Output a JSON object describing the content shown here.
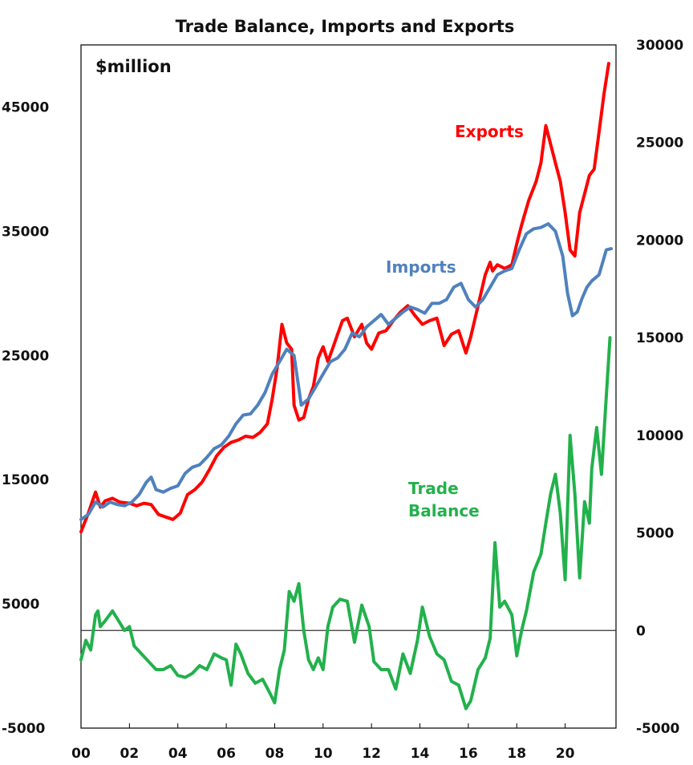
{
  "chart_data": {
    "type": "line",
    "title": "Trade Balance, Imports and Exports",
    "unit_label": "$million",
    "x_label": "",
    "y_label_left": "",
    "y_label_right": "",
    "ylim_left": [
      -5000,
      50000
    ],
    "ylim_right": [
      -5000,
      30000
    ],
    "yticks_left": [
      -5000,
      5000,
      15000,
      25000,
      35000,
      45000
    ],
    "yticks_right": [
      -5000,
      0,
      5000,
      10000,
      15000,
      20000,
      25000,
      30000
    ],
    "xlim": [
      2000,
      2022.1
    ],
    "xticks": [
      2000,
      2002,
      2004,
      2006,
      2008,
      2010,
      2012,
      2014,
      2016,
      2018,
      2020
    ],
    "xtick_labels": [
      "00",
      "02",
      "04",
      "06",
      "08",
      "10",
      "12",
      "14",
      "16",
      "18",
      "20"
    ],
    "zero_line_right": 0,
    "grid": false,
    "legend": "inline labels",
    "series": [
      {
        "name": "Exports",
        "axis": "left",
        "color": "#ff0000",
        "x": [
          2000.0,
          2000.3,
          2000.6,
          2000.8,
          2001.0,
          2001.3,
          2001.6,
          2002.0,
          2002.3,
          2002.6,
          2002.9,
          2003.2,
          2003.5,
          2003.8,
          2004.1,
          2004.4,
          2004.7,
          2005.0,
          2005.3,
          2005.6,
          2005.9,
          2006.2,
          2006.5,
          2006.8,
          2007.1,
          2007.4,
          2007.7,
          2007.9,
          2008.1,
          2008.3,
          2008.5,
          2008.7,
          2008.8,
          2009.0,
          2009.2,
          2009.4,
          2009.6,
          2009.8,
          2010.0,
          2010.2,
          2010.4,
          2010.6,
          2010.8,
          2011.0,
          2011.3,
          2011.6,
          2011.8,
          2012.0,
          2012.3,
          2012.6,
          2012.9,
          2013.2,
          2013.5,
          2013.8,
          2014.1,
          2014.4,
          2014.7,
          2015.0,
          2015.3,
          2015.6,
          2015.9,
          2016.1,
          2016.4,
          2016.7,
          2016.9,
          2017.0,
          2017.2,
          2017.5,
          2017.8,
          2018.0,
          2018.2,
          2018.5,
          2018.8,
          2019.0,
          2019.2,
          2019.4,
          2019.6,
          2019.8,
          2020.0,
          2020.2,
          2020.4,
          2020.6,
          2020.8,
          2021.0,
          2021.2,
          2021.4,
          2021.6,
          2021.8
        ],
        "values": [
          10800,
          12300,
          14000,
          12800,
          13300,
          13500,
          13200,
          13100,
          12900,
          13100,
          13000,
          12200,
          12000,
          11800,
          12300,
          13800,
          14200,
          14800,
          15800,
          16900,
          17600,
          18000,
          18200,
          18500,
          18400,
          18800,
          19500,
          21500,
          24000,
          27500,
          26000,
          25500,
          21000,
          19800,
          20000,
          21500,
          22500,
          24800,
          25700,
          24500,
          25600,
          26700,
          27800,
          28000,
          26500,
          27500,
          26000,
          25500,
          26800,
          27000,
          27800,
          28500,
          29000,
          28200,
          27500,
          27800,
          28000,
          25800,
          26700,
          27000,
          25200,
          26500,
          29000,
          31500,
          32500,
          31800,
          32300,
          32000,
          32300,
          34000,
          35500,
          37500,
          39000,
          40500,
          43500,
          42000,
          40500,
          39000,
          36500,
          33500,
          33000,
          36500,
          38000,
          39500,
          40000,
          43000,
          46000,
          48500
        ]
      },
      {
        "name": "Imports",
        "axis": "left",
        "color": "#4f81bd",
        "x": [
          2000.0,
          2000.3,
          2000.6,
          2000.9,
          2001.2,
          2001.5,
          2001.8,
          2002.1,
          2002.4,
          2002.7,
          2002.9,
          2003.1,
          2003.4,
          2003.7,
          2004.0,
          2004.3,
          2004.6,
          2004.9,
          2005.2,
          2005.5,
          2005.8,
          2006.1,
          2006.4,
          2006.7,
          2007.0,
          2007.3,
          2007.6,
          2007.9,
          2008.2,
          2008.5,
          2008.8,
          2009.1,
          2009.4,
          2009.7,
          2010.0,
          2010.3,
          2010.6,
          2010.9,
          2011.2,
          2011.5,
          2011.8,
          2012.1,
          2012.4,
          2012.7,
          2013.0,
          2013.3,
          2013.6,
          2013.9,
          2014.2,
          2014.5,
          2014.8,
          2015.1,
          2015.4,
          2015.7,
          2016.0,
          2016.3,
          2016.6,
          2016.9,
          2017.2,
          2017.5,
          2017.8,
          2018.1,
          2018.4,
          2018.7,
          2019.0,
          2019.3,
          2019.6,
          2019.9,
          2020.1,
          2020.3,
          2020.5,
          2020.7,
          2020.9,
          2021.1,
          2021.4,
          2021.7,
          2021.9
        ],
        "values": [
          11800,
          12200,
          13200,
          12800,
          13200,
          13000,
          12900,
          13200,
          13800,
          14800,
          15200,
          14200,
          14000,
          14300,
          14500,
          15500,
          16000,
          16200,
          16800,
          17500,
          17800,
          18500,
          19500,
          20200,
          20300,
          21000,
          22000,
          23500,
          24500,
          25500,
          25000,
          21000,
          21500,
          22500,
          23500,
          24500,
          24800,
          25500,
          26800,
          26500,
          27300,
          27800,
          28300,
          27500,
          28000,
          28500,
          28900,
          28700,
          28400,
          29200,
          29200,
          29500,
          30500,
          30800,
          29500,
          28900,
          29500,
          30500,
          31500,
          31800,
          32000,
          33500,
          34800,
          35200,
          35300,
          35600,
          35000,
          33000,
          30000,
          28200,
          28500,
          29600,
          30500,
          31000,
          31500,
          33500,
          33600
        ]
      },
      {
        "name": "Trade Balance",
        "axis": "right",
        "color": "#22b14c",
        "x": [
          2000.0,
          2000.2,
          2000.4,
          2000.6,
          2000.7,
          2000.8,
          2001.0,
          2001.3,
          2001.5,
          2001.8,
          2002.0,
          2002.2,
          2002.5,
          2002.8,
          2003.1,
          2003.4,
          2003.7,
          2004.0,
          2004.3,
          2004.6,
          2004.9,
          2005.2,
          2005.5,
          2005.8,
          2006.0,
          2006.2,
          2006.4,
          2006.6,
          2006.9,
          2007.2,
          2007.5,
          2007.8,
          2008.0,
          2008.2,
          2008.4,
          2008.6,
          2008.8,
          2009.0,
          2009.2,
          2009.4,
          2009.6,
          2009.8,
          2010.0,
          2010.2,
          2010.4,
          2010.7,
          2011.0,
          2011.3,
          2011.6,
          2011.9,
          2012.1,
          2012.4,
          2012.7,
          2013.0,
          2013.3,
          2013.6,
          2013.9,
          2014.1,
          2014.4,
          2014.7,
          2015.0,
          2015.3,
          2015.6,
          2015.9,
          2016.1,
          2016.4,
          2016.7,
          2016.9,
          2017.1,
          2017.3,
          2017.5,
          2017.8,
          2018.0,
          2018.2,
          2018.4,
          2018.7,
          2019.0,
          2019.2,
          2019.4,
          2019.6,
          2019.8,
          2020.0,
          2020.2,
          2020.4,
          2020.6,
          2020.8,
          2021.0,
          2021.1,
          2021.3,
          2021.5,
          2021.7,
          2021.85
        ],
        "values": [
          -1500,
          -500,
          -1000,
          800,
          1000,
          200,
          500,
          1000,
          600,
          0,
          200,
          -800,
          -1200,
          -1600,
          -2000,
          -2000,
          -1800,
          -2300,
          -2400,
          -2200,
          -1800,
          -2000,
          -1200,
          -1400,
          -1500,
          -2800,
          -700,
          -1200,
          -2200,
          -2700,
          -2500,
          -3200,
          -3700,
          -2000,
          -1000,
          2000,
          1500,
          2400,
          0,
          -1500,
          -2000,
          -1400,
          -2000,
          200,
          1200,
          1600,
          1500,
          -600,
          1300,
          200,
          -1600,
          -2000,
          -2000,
          -3000,
          -1200,
          -2200,
          -500,
          1200,
          -300,
          -1200,
          -1500,
          -2600,
          -2800,
          -4000,
          -3600,
          -2000,
          -1400,
          -400,
          4500,
          1200,
          1500,
          800,
          -1300,
          0,
          1000,
          3000,
          3900,
          5500,
          7000,
          8000,
          6000,
          2600,
          10000,
          7000,
          2700,
          6600,
          5500,
          8300,
          10400,
          8000,
          12000,
          15000
        ]
      }
    ],
    "annotations": [
      {
        "text": "Exports",
        "color": "#ff0000"
      },
      {
        "text": "Imports",
        "color": "#4f81bd"
      },
      {
        "text_lines": [
          "Trade",
          "Balance"
        ],
        "color": "#22b14c"
      }
    ]
  }
}
